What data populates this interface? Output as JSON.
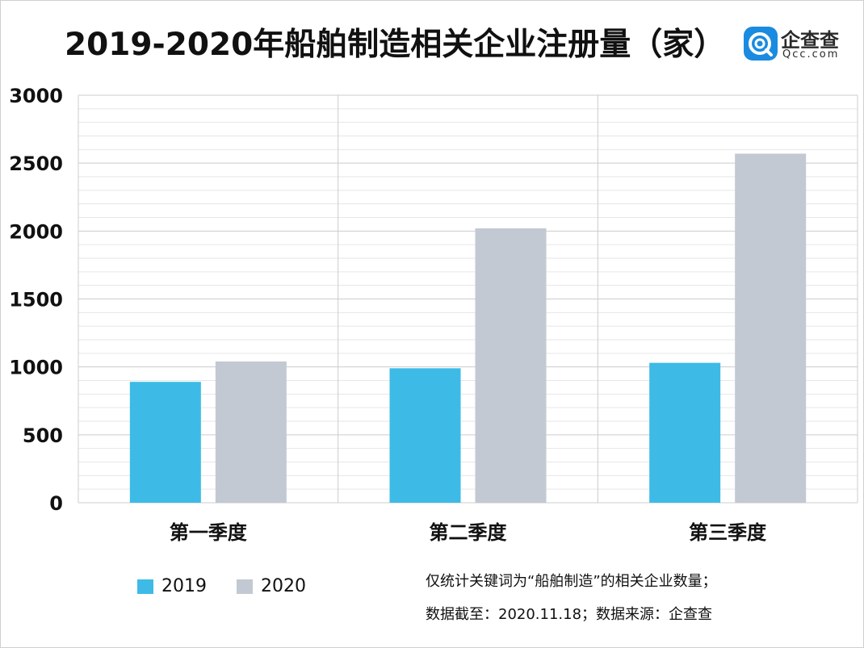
{
  "chart_data": {
    "type": "bar",
    "title": "2019-2020年船舶制造相关企业注册量（家）",
    "categories": [
      "第一季度",
      "第二季度",
      "第三季度"
    ],
    "series": [
      {
        "name": "2019",
        "values": [
          890,
          990,
          1030
        ],
        "color": "#3dbbe6"
      },
      {
        "name": "2020",
        "values": [
          1040,
          2020,
          2570
        ],
        "color": "#c2c9d2"
      }
    ],
    "yticks": [
      "0",
      "500",
      "1000",
      "1500",
      "2000",
      "2500",
      "3000"
    ],
    "ylim": [
      0,
      3000
    ],
    "grid": true,
    "legend_position": "bottom-left",
    "notes": [
      "仅统计关键词为“船舶制造”的相关企业数量；",
      "数据截至：2020.11.18；数据来源：企查查"
    ]
  },
  "logo": {
    "cn": "企查查",
    "en": "Qcc.com",
    "icon": "qcc-logo-icon",
    "color": "#1a8be0"
  }
}
